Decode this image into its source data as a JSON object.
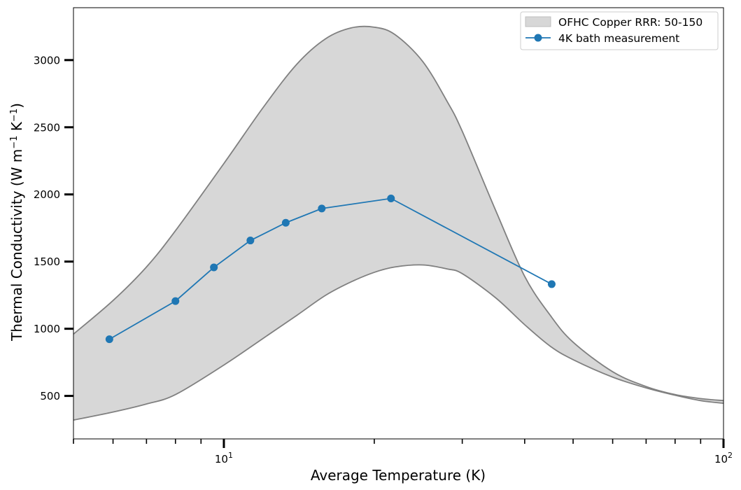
{
  "chart_data": {
    "type": "line",
    "xscale": "log",
    "xlim": [
      5,
      100
    ],
    "ylim": [
      180,
      3390
    ],
    "xlabel": "Average Temperature (K)",
    "ylabel_main": "Thermal Conductivity (W m",
    "ylabel_exp1": "−1",
    "ylabel_mid": " K",
    "ylabel_exp2": "−1",
    "ylabel_end": ")",
    "x_ticks": [
      {
        "value": 10,
        "base": "10",
        "exp": "1"
      },
      {
        "value": 100,
        "base": "10",
        "exp": "2"
      }
    ],
    "y_ticks": [
      {
        "value": 500,
        "label": "500"
      },
      {
        "value": 1000,
        "label": "1000"
      },
      {
        "value": 1500,
        "label": "1500"
      },
      {
        "value": 2000,
        "label": "2000"
      },
      {
        "value": 2500,
        "label": "2500"
      },
      {
        "value": 3000,
        "label": "3000"
      }
    ],
    "band": {
      "name": "OFHC Copper RRR: 50-150",
      "fill_color": "#d7d7d7",
      "edge_color": "#808080",
      "x": [
        5.0,
        6.0,
        7.0,
        8.0,
        10.0,
        12.0,
        14.0,
        16.0,
        18.0,
        20.0,
        22.0,
        25.0,
        28.0,
        30.0,
        35.0,
        40.0,
        45.0,
        50.0,
        60.0,
        70.0,
        80.0,
        90.0,
        100.0
      ],
      "upper": [
        960,
        1210,
        1460,
        1730,
        2230,
        2650,
        2970,
        3160,
        3240,
        3245,
        3190,
        2990,
        2690,
        2470,
        1880,
        1390,
        1100,
        900,
        680,
        570,
        510,
        480,
        465
      ],
      "lower": [
        320,
        380,
        440,
        510,
        730,
        930,
        1100,
        1250,
        1350,
        1420,
        1460,
        1475,
        1445,
        1410,
        1230,
        1030,
        870,
        770,
        640,
        560,
        505,
        465,
        445
      ]
    },
    "series": [
      {
        "name": "4K bath measurement",
        "color": "#1f77b4",
        "x": [
          5.9,
          8.0,
          9.55,
          11.3,
          13.3,
          15.7,
          21.6,
          45.3
        ],
        "y": [
          922,
          1206,
          1457,
          1657,
          1789,
          1895,
          1970,
          1332
        ]
      }
    ],
    "legend": {
      "position": "top-right",
      "entries": [
        {
          "label": "OFHC Copper RRR: 50-150",
          "kind": "band"
        },
        {
          "label": "4K bath measurement",
          "kind": "line"
        }
      ]
    }
  }
}
